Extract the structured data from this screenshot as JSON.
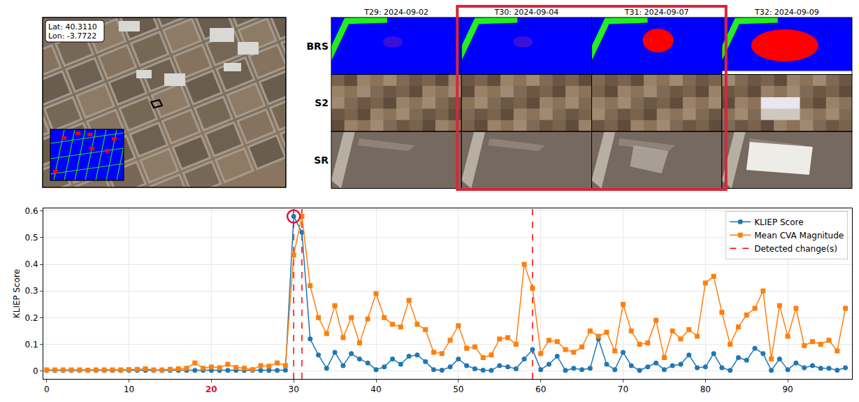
{
  "map_panel": {
    "coordinates": [
      "Lat: 40.3110",
      "Lon: -3.7722"
    ]
  },
  "image_grid": {
    "columns": [
      "T29: 2024-09-02",
      "T30: 2024-09-04",
      "T31: 2024-09-07",
      "T32: 2024-09-09"
    ],
    "rows": [
      "BRS",
      "S2",
      "SR"
    ],
    "highlighted_columns": [
      1,
      2
    ]
  },
  "chart_data": {
    "type": "line",
    "x": [
      0,
      1,
      2,
      3,
      4,
      5,
      6,
      7,
      8,
      9,
      10,
      11,
      12,
      13,
      14,
      15,
      16,
      17,
      18,
      19,
      20,
      21,
      22,
      23,
      24,
      25,
      26,
      27,
      28,
      29,
      30,
      31,
      32,
      33,
      34,
      35,
      36,
      37,
      38,
      39,
      40,
      41,
      42,
      43,
      44,
      45,
      46,
      47,
      48,
      49,
      50,
      51,
      52,
      53,
      54,
      55,
      56,
      57,
      58,
      59,
      60,
      61,
      62,
      63,
      64,
      65,
      66,
      67,
      68,
      69,
      70,
      71,
      72,
      73,
      74,
      75,
      76,
      77,
      78,
      79,
      80,
      81,
      82,
      83,
      84,
      85,
      86,
      87,
      88,
      89,
      90,
      91,
      92,
      93,
      94,
      95,
      96,
      97
    ],
    "series": [
      {
        "name": "KLIEP Score",
        "color": "#1f77b4",
        "marker": "circle",
        "values": [
          0.002,
          0.002,
          0.002,
          0.002,
          0.002,
          0.002,
          0.002,
          0.002,
          0.002,
          0.002,
          0.002,
          0.002,
          0.002,
          0.002,
          0.002,
          0.002,
          0.002,
          0.002,
          0.002,
          0.002,
          0.002,
          0.002,
          0.002,
          0.002,
          0.002,
          0.002,
          0.002,
          0.002,
          0.002,
          0.003,
          0.58,
          0.52,
          0.12,
          0.06,
          0.01,
          0.07,
          0.02,
          0.065,
          0.045,
          0.03,
          0.005,
          0.015,
          0.045,
          0.025,
          0.055,
          0.06,
          0.035,
          0.005,
          0.003,
          0.015,
          0.045,
          0.02,
          0.008,
          0.003,
          0.002,
          0.02,
          0.015,
          0.008,
          0.045,
          0.08,
          0.005,
          0.025,
          0.055,
          0.002,
          0.01,
          0.005,
          0.01,
          0.12,
          0.025,
          0.005,
          0.07,
          0.02,
          0.002,
          0.015,
          0.03,
          0.005,
          0.02,
          0.025,
          0.06,
          0.012,
          0.015,
          0.065,
          0.012,
          0.002,
          0.05,
          0.04,
          0.085,
          0.065,
          0.002,
          0.045,
          0.005,
          0.03,
          0.012,
          0.02,
          0.01,
          0.01,
          0.003,
          0.012
        ]
      },
      {
        "name": "Mean CVA Magnitude",
        "color": "#ff7f0e",
        "marker": "square",
        "values": [
          0.004,
          0.004,
          0.004,
          0.004,
          0.004,
          0.003,
          0.004,
          0.004,
          0.004,
          0.004,
          0.005,
          0.006,
          0.008,
          0.004,
          0.004,
          0.006,
          0.008,
          0.01,
          0.03,
          0.01,
          0.015,
          0.012,
          0.025,
          0.013,
          0.01,
          0.005,
          0.02,
          0.018,
          0.03,
          0.02,
          0.435,
          0.58,
          0.32,
          0.2,
          0.14,
          0.245,
          0.125,
          0.2,
          0.105,
          0.195,
          0.29,
          0.2,
          0.175,
          0.165,
          0.265,
          0.175,
          0.155,
          0.07,
          0.065,
          0.115,
          0.17,
          0.085,
          0.09,
          0.05,
          0.06,
          0.12,
          0.125,
          0.1,
          0.4,
          0.31,
          0.065,
          0.115,
          0.11,
          0.08,
          0.07,
          0.09,
          0.15,
          0.13,
          0.145,
          0.075,
          0.25,
          0.15,
          0.1,
          0.105,
          0.19,
          0.05,
          0.15,
          0.12,
          0.155,
          0.13,
          0.33,
          0.355,
          0.22,
          0.1,
          0.165,
          0.21,
          0.235,
          0.3,
          0.045,
          0.245,
          0.13,
          0.235,
          0.095,
          0.11,
          0.1,
          0.115,
          0.075,
          0.235
        ]
      }
    ],
    "detected_changes": {
      "name": "Detected change(s)",
      "color": "red",
      "line_style": "dashed",
      "x": [
        30,
        31,
        59
      ]
    },
    "highlight": {
      "x": 30,
      "y": 0.58,
      "color": "crimson"
    },
    "highlighted_xtick": 20,
    "ylabel": "KLIEP Score",
    "xlim": [
      -0.4,
      97.8
    ],
    "ylim": [
      -0.03,
      0.61
    ],
    "xticks": [
      0,
      10,
      20,
      30,
      40,
      50,
      60,
      70,
      80,
      90
    ],
    "yticks": [
      0,
      0.1,
      0.2,
      0.3,
      0.4,
      0.5,
      0.6
    ],
    "grid": true,
    "legend": "upper right"
  }
}
